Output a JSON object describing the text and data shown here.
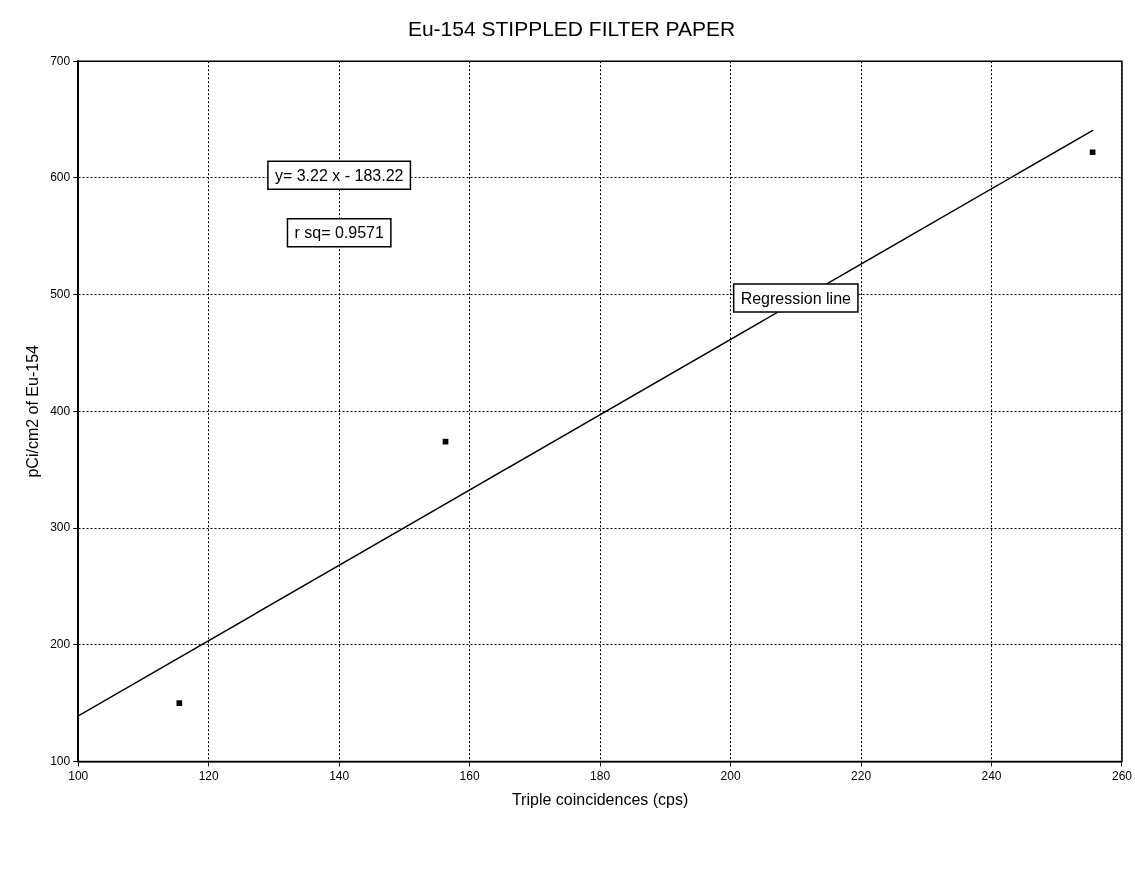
{
  "chart_data": {
    "type": "scatter",
    "title": "Eu-154 STIPPLED FILTER PAPER",
    "xlabel": "Triple coincidences (cps)",
    "ylabel": "pCi/cm2 of Eu-154",
    "xlim": [
      100,
      260
    ],
    "xticks": [
      100,
      120,
      140,
      160,
      180,
      200,
      220,
      240,
      260
    ],
    "ylim": [
      100,
      700
    ],
    "yticks": [
      100,
      200,
      300,
      400,
      500,
      600,
      700
    ],
    "grid": true,
    "legend": false,
    "series": [
      {
        "type": "scatter",
        "color": "#000000",
        "marker": "square",
        "x": [
          115.5,
          156.3,
          255.5
        ],
        "values": [
          150,
          374,
          622
        ]
      },
      {
        "type": "line",
        "color": "#000000",
        "marker": "none",
        "line_style": "solid",
        "x": [
          100,
          255.6
        ],
        "values": [
          139,
          641
        ]
      }
    ],
    "annotations": [
      "y= 3.22 x - 183.22",
      "r sq= 0.9571",
      {
        "text": "Regression line",
        "x": 210,
        "y": 497
      }
    ]
  }
}
